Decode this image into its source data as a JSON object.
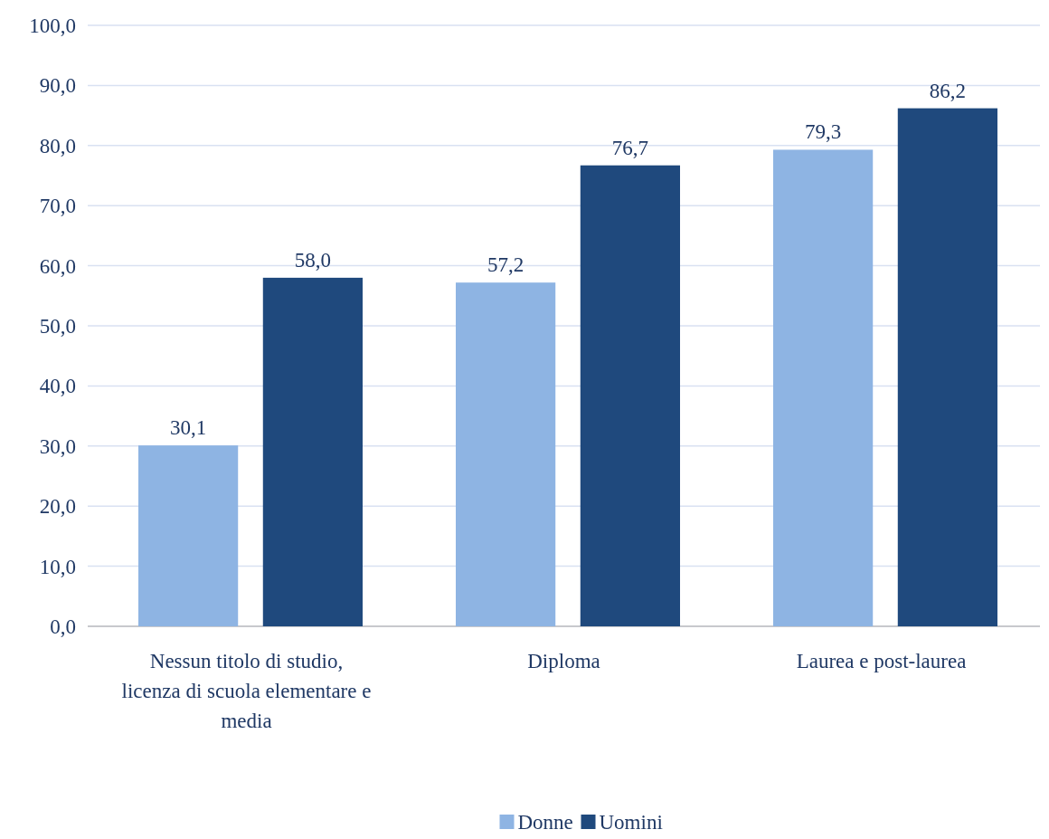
{
  "chart_data": {
    "type": "bar",
    "categories": [
      "Nessun titolo di studio, licenza di scuola elementare e media",
      "Diploma",
      "Laurea e post-laurea"
    ],
    "series": [
      {
        "name": "Donne",
        "color": "#8eb4e3",
        "values": [
          30.1,
          57.2,
          79.3
        ],
        "value_labels": [
          "30,1",
          "57,2",
          "79,3"
        ]
      },
      {
        "name": "Uomini",
        "color": "#1f497d",
        "values": [
          58.0,
          76.7,
          86.2
        ],
        "value_labels": [
          "58,0",
          "76,7",
          "86,2"
        ]
      }
    ],
    "ylim": [
      0,
      100
    ],
    "yticks": [
      {
        "value": 0,
        "label": "0,0"
      },
      {
        "value": 10,
        "label": "10,0"
      },
      {
        "value": 20,
        "label": "20,0"
      },
      {
        "value": 30,
        "label": "30,0"
      },
      {
        "value": 40,
        "label": "40,0"
      },
      {
        "value": 50,
        "label": "50,0"
      },
      {
        "value": 60,
        "label": "60,0"
      },
      {
        "value": 70,
        "label": "70,0"
      },
      {
        "value": 80,
        "label": "80,0"
      },
      {
        "value": 90,
        "label": "90,0"
      },
      {
        "value": 100,
        "label": "100,0"
      }
    ],
    "grid": "y",
    "legend": "bottom"
  }
}
